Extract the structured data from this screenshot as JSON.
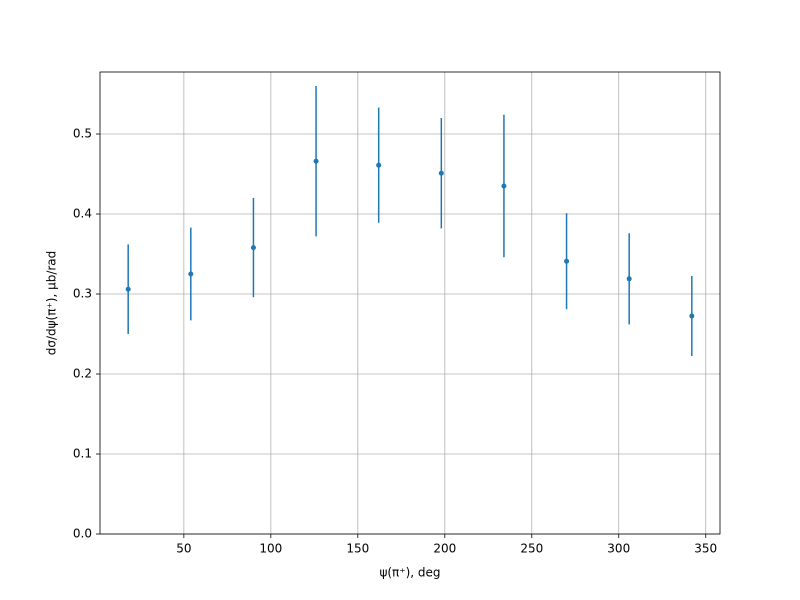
{
  "chart_data": {
    "type": "errorbar",
    "x_label": "ψ(π⁺), deg",
    "y_label": "dσ/dψ(π⁺), μb/rad",
    "x": [
      18,
      54,
      90,
      126,
      162,
      198,
      234,
      270,
      306,
      342
    ],
    "values": [
      0.306,
      0.325,
      0.358,
      0.466,
      0.461,
      0.451,
      0.435,
      0.341,
      0.319,
      0.2725
    ],
    "errors": [
      0.056,
      0.058,
      0.062,
      0.094,
      0.072,
      0.069,
      0.089,
      0.06,
      0.057,
      0.05
    ],
    "color": "#1f77b4",
    "xlim": [
      1.8,
      358.2
    ],
    "ylim": [
      0,
      0.5775
    ],
    "xticks": [
      50,
      100,
      150,
      200,
      250,
      300,
      350
    ],
    "yticks": [
      {
        "value": 0,
        "label": "0.0"
      },
      {
        "value": 0.1,
        "label": "0.1"
      },
      {
        "value": 0.2,
        "label": "0.2"
      },
      {
        "value": 0.3,
        "label": "0.3"
      },
      {
        "value": 0.4,
        "label": "0.4"
      },
      {
        "value": 0.5,
        "label": "0.5"
      }
    ],
    "grid": true
  }
}
